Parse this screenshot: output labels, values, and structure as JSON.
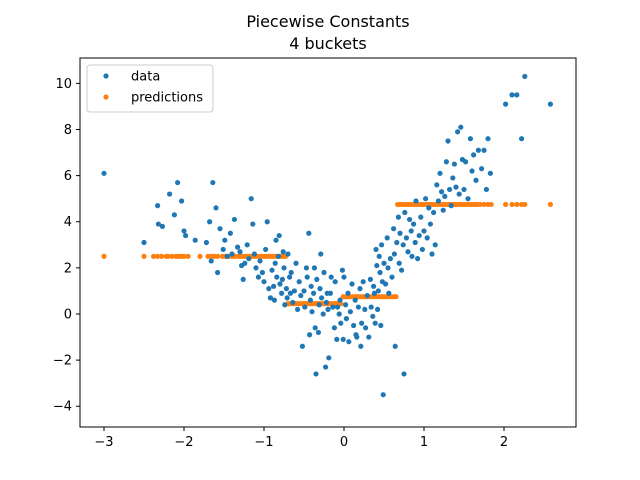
{
  "chart_data": {
    "type": "scatter",
    "title": "Piecewise Constants",
    "subtitle": "4 buckets",
    "xlabel": "",
    "ylabel": "",
    "xlim": [
      -3.3,
      2.9
    ],
    "ylim": [
      -4.9,
      11.1
    ],
    "xticks": [
      -3,
      -2,
      -1,
      0,
      1,
      2
    ],
    "yticks": [
      -4,
      -2,
      0,
      2,
      4,
      6,
      8,
      10
    ],
    "grid": false,
    "legend_position": "top-left",
    "series": [
      {
        "name": "data",
        "color": "#1f77b4",
        "points": [
          [
            -3.0,
            6.1
          ],
          [
            -2.5,
            3.1
          ],
          [
            -2.33,
            4.7
          ],
          [
            -2.32,
            3.9
          ],
          [
            -2.27,
            3.8
          ],
          [
            -2.18,
            5.2
          ],
          [
            -2.12,
            4.3
          ],
          [
            -2.08,
            5.7
          ],
          [
            -2.03,
            4.9
          ],
          [
            -2.0,
            3.6
          ],
          [
            -1.98,
            3.4
          ],
          [
            -1.86,
            3.2
          ],
          [
            -1.72,
            3.1
          ],
          [
            -1.68,
            4.0
          ],
          [
            -1.66,
            2.3
          ],
          [
            -1.64,
            5.7
          ],
          [
            -1.6,
            4.6
          ],
          [
            -1.58,
            1.8
          ],
          [
            -1.55,
            3.7
          ],
          [
            -1.51,
            2.8
          ],
          [
            -1.49,
            3.2
          ],
          [
            -1.46,
            2.5
          ],
          [
            -1.42,
            3.5
          ],
          [
            -1.4,
            2.6
          ],
          [
            -1.37,
            4.1
          ],
          [
            -1.33,
            2.9
          ],
          [
            -1.3,
            2.7
          ],
          [
            -1.28,
            2.1
          ],
          [
            -1.26,
            1.5
          ],
          [
            -1.24,
            2.2
          ],
          [
            -1.21,
            3.0
          ],
          [
            -1.19,
            2.4
          ],
          [
            -1.16,
            5.0
          ],
          [
            -1.14,
            3.9
          ],
          [
            -1.12,
            2.6
          ],
          [
            -1.1,
            2.0
          ],
          [
            -1.07,
            1.6
          ],
          [
            -1.05,
            2.3
          ],
          [
            -1.02,
            1.8
          ],
          [
            -1.0,
            1.4
          ],
          [
            -0.98,
            2.8
          ],
          [
            -0.96,
            4.0
          ],
          [
            -0.94,
            1.1
          ],
          [
            -0.92,
            0.7
          ],
          [
            -0.9,
            1.9
          ],
          [
            -0.88,
            1.2
          ],
          [
            -0.87,
            0.6
          ],
          [
            -0.86,
            2.2
          ],
          [
            -0.85,
            3.2
          ],
          [
            -0.84,
            1.6
          ],
          [
            -0.82,
            2.5
          ],
          [
            -0.81,
            3.4
          ],
          [
            -0.8,
            1.3
          ],
          [
            -0.78,
            0.9
          ],
          [
            -0.77,
            1.5
          ],
          [
            -0.76,
            2.7
          ],
          [
            -0.75,
            2.0
          ],
          [
            -0.74,
            0.4
          ],
          [
            -0.72,
            1.1
          ],
          [
            -0.71,
            0.7
          ],
          [
            -0.7,
            2.6
          ],
          [
            -0.68,
            1.6
          ],
          [
            -0.67,
            0.9
          ],
          [
            -0.66,
            1.8
          ],
          [
            -0.64,
            0.5
          ],
          [
            -0.62,
            1.0
          ],
          [
            -0.6,
            2.2
          ],
          [
            -0.58,
            0.2
          ],
          [
            -0.56,
            1.4
          ],
          [
            -0.54,
            0.8
          ],
          [
            -0.52,
            -1.4
          ],
          [
            -0.5,
            1.0
          ],
          [
            -0.49,
            0.3
          ],
          [
            -0.47,
            2.0
          ],
          [
            -0.46,
            1.6
          ],
          [
            -0.44,
            3.5
          ],
          [
            -0.43,
            -0.9
          ],
          [
            -0.42,
            0.6
          ],
          [
            -0.41,
            1.2
          ],
          [
            -0.4,
            0.1
          ],
          [
            -0.38,
            0.9
          ],
          [
            -0.37,
            2.0
          ],
          [
            -0.36,
            -0.6
          ],
          [
            -0.35,
            -2.6
          ],
          [
            -0.34,
            1.5
          ],
          [
            -0.32,
            -0.8
          ],
          [
            -0.31,
            0.4
          ],
          [
            -0.3,
            1.1
          ],
          [
            -0.29,
            2.6
          ],
          [
            -0.28,
            0.7
          ],
          [
            -0.26,
            0.0
          ],
          [
            -0.25,
            1.8
          ],
          [
            -0.23,
            -2.3
          ],
          [
            -0.22,
            0.5
          ],
          [
            -0.21,
            0.9
          ],
          [
            -0.2,
            0.2
          ],
          [
            -0.19,
            -1.9
          ],
          [
            -0.17,
            0.9
          ],
          [
            -0.16,
            1.6
          ],
          [
            -0.14,
            0.3
          ],
          [
            -0.12,
            -0.6
          ],
          [
            -0.11,
            1.4
          ],
          [
            -0.09,
            -1.1
          ],
          [
            -0.08,
            0.3
          ],
          [
            -0.06,
            0.0
          ],
          [
            -0.05,
            0.6
          ],
          [
            -0.04,
            -0.4
          ],
          [
            -0.02,
            1.9
          ],
          [
            -0.01,
            -1.1
          ],
          [
            0.0,
            1.6
          ],
          [
            0.02,
            0.4
          ],
          [
            0.03,
            -0.2
          ],
          [
            0.05,
            0.9
          ],
          [
            0.06,
            -1.2
          ],
          [
            0.08,
            0.1
          ],
          [
            0.1,
            1.3
          ],
          [
            0.12,
            -0.5
          ],
          [
            0.14,
            0.6
          ],
          [
            0.15,
            -0.9
          ],
          [
            0.16,
            -1.0
          ],
          [
            0.18,
            0.3
          ],
          [
            0.2,
            1.1
          ],
          [
            0.21,
            -1.4
          ],
          [
            0.22,
            -0.4
          ],
          [
            0.24,
            1.4
          ],
          [
            0.26,
            0.2
          ],
          [
            0.27,
            -0.6
          ],
          [
            0.29,
            0.8
          ],
          [
            0.31,
            -1.0
          ],
          [
            0.33,
            1.5
          ],
          [
            0.34,
            0.3
          ],
          [
            0.36,
            -0.1
          ],
          [
            0.37,
            1.2
          ],
          [
            0.38,
            0.9
          ],
          [
            0.39,
            -0.4
          ],
          [
            0.4,
            2.8
          ],
          [
            0.41,
            2.1
          ],
          [
            0.42,
            0.2
          ],
          [
            0.43,
            1.0
          ],
          [
            0.44,
            2.5
          ],
          [
            0.45,
            1.8
          ],
          [
            0.46,
            -0.5
          ],
          [
            0.47,
            3.0
          ],
          [
            0.48,
            1.4
          ],
          [
            0.49,
            -3.5
          ],
          [
            0.5,
            2.2
          ],
          [
            0.52,
            1.3
          ],
          [
            0.54,
            3.3
          ],
          [
            0.55,
            2.0
          ],
          [
            0.56,
            0.9
          ],
          [
            0.58,
            2.4
          ],
          [
            0.6,
            1.6
          ],
          [
            0.62,
            3.7
          ],
          [
            0.63,
            2.6
          ],
          [
            0.64,
            -1.4
          ],
          [
            0.66,
            3.1
          ],
          [
            0.68,
            4.2
          ],
          [
            0.69,
            2.2
          ],
          [
            0.7,
            3.5
          ],
          [
            0.72,
            1.9
          ],
          [
            0.74,
            3.0
          ],
          [
            0.75,
            -2.6
          ],
          [
            0.76,
            4.4
          ],
          [
            0.78,
            3.3
          ],
          [
            0.8,
            2.7
          ],
          [
            0.82,
            4.1
          ],
          [
            0.84,
            3.6
          ],
          [
            0.85,
            2.5
          ],
          [
            0.87,
            3.9
          ],
          [
            0.89,
            3.1
          ],
          [
            0.9,
            4.9
          ],
          [
            0.92,
            2.4
          ],
          [
            0.94,
            3.4
          ],
          [
            0.96,
            4.2
          ],
          [
            0.98,
            2.8
          ],
          [
            1.0,
            3.6
          ],
          [
            1.02,
            5.0
          ],
          [
            1.04,
            3.3
          ],
          [
            1.06,
            4.6
          ],
          [
            1.08,
            3.9
          ],
          [
            1.1,
            2.6
          ],
          [
            1.12,
            4.4
          ],
          [
            1.14,
            3.0
          ],
          [
            1.16,
            5.6
          ],
          [
            1.18,
            4.9
          ],
          [
            1.2,
            6.1
          ],
          [
            1.22,
            5.3
          ],
          [
            1.24,
            4.5
          ],
          [
            1.26,
            5.1
          ],
          [
            1.28,
            6.6
          ],
          [
            1.3,
            7.5
          ],
          [
            1.32,
            5.4
          ],
          [
            1.34,
            4.7
          ],
          [
            1.36,
            5.9
          ],
          [
            1.38,
            6.5
          ],
          [
            1.4,
            5.5
          ],
          [
            1.42,
            7.9
          ],
          [
            1.44,
            5.2
          ],
          [
            1.46,
            8.1
          ],
          [
            1.48,
            6.7
          ],
          [
            1.5,
            5.4
          ],
          [
            1.52,
            6.6
          ],
          [
            1.55,
            5.0
          ],
          [
            1.58,
            7.6
          ],
          [
            1.6,
            6.2
          ],
          [
            1.62,
            6.9
          ],
          [
            1.65,
            5.8
          ],
          [
            1.68,
            7.1
          ],
          [
            1.72,
            6.3
          ],
          [
            1.75,
            7.1
          ],
          [
            1.78,
            5.4
          ],
          [
            1.8,
            7.6
          ],
          [
            1.83,
            6.1
          ],
          [
            2.02,
            9.1
          ],
          [
            2.1,
            9.5
          ],
          [
            2.16,
            9.5
          ],
          [
            2.22,
            7.6
          ],
          [
            2.26,
            10.3
          ],
          [
            2.58,
            9.1
          ]
        ]
      },
      {
        "name": "predictions",
        "color": "#ff7f0e",
        "segments": [
          {
            "from": -3.0,
            "to": -0.72,
            "y": 2.5
          },
          {
            "from": -0.72,
            "to": -0.02,
            "y": 0.45
          },
          {
            "from": -0.02,
            "to": 0.66,
            "y": 0.75
          },
          {
            "from": 0.66,
            "to": 2.58,
            "y": 4.75
          }
        ],
        "x": [
          -3.0,
          -2.5,
          -2.38,
          -2.33,
          -2.28,
          -2.22,
          -2.2,
          -2.15,
          -2.1,
          -2.06,
          -2.03,
          -2.0,
          -1.95,
          -1.8,
          -1.7,
          -1.66,
          -1.62,
          -1.58,
          -1.52,
          -1.48,
          -1.44,
          -1.4,
          -1.36,
          -1.32,
          -1.3,
          -1.27,
          -1.24,
          -1.21,
          -1.18,
          -1.15,
          -1.12,
          -1.09,
          -1.06,
          -1.03,
          -1.0,
          -0.97,
          -0.94,
          -0.91,
          -0.88,
          -0.85,
          -0.82,
          -0.79,
          -0.76,
          -0.73,
          -0.7,
          -0.67,
          -0.64,
          -0.61,
          -0.58,
          -0.55,
          -0.52,
          -0.49,
          -0.46,
          -0.43,
          -0.4,
          -0.37,
          -0.34,
          -0.31,
          -0.28,
          -0.25,
          -0.22,
          -0.19,
          -0.16,
          -0.13,
          -0.1,
          -0.07,
          -0.04,
          -0.01,
          0.02,
          0.05,
          0.08,
          0.11,
          0.14,
          0.17,
          0.2,
          0.23,
          0.26,
          0.29,
          0.32,
          0.35,
          0.38,
          0.41,
          0.44,
          0.47,
          0.5,
          0.53,
          0.56,
          0.59,
          0.62,
          0.65,
          0.67,
          0.7,
          0.73,
          0.76,
          0.79,
          0.82,
          0.85,
          0.88,
          0.91,
          0.94,
          0.97,
          1.0,
          1.03,
          1.06,
          1.09,
          1.12,
          1.15,
          1.18,
          1.21,
          1.24,
          1.27,
          1.3,
          1.33,
          1.36,
          1.39,
          1.42,
          1.45,
          1.48,
          1.51,
          1.54,
          1.57,
          1.6,
          1.63,
          1.66,
          1.7,
          1.75,
          1.8,
          1.84,
          2.02,
          2.1,
          2.16,
          2.22,
          2.26,
          2.58
        ]
      }
    ]
  }
}
